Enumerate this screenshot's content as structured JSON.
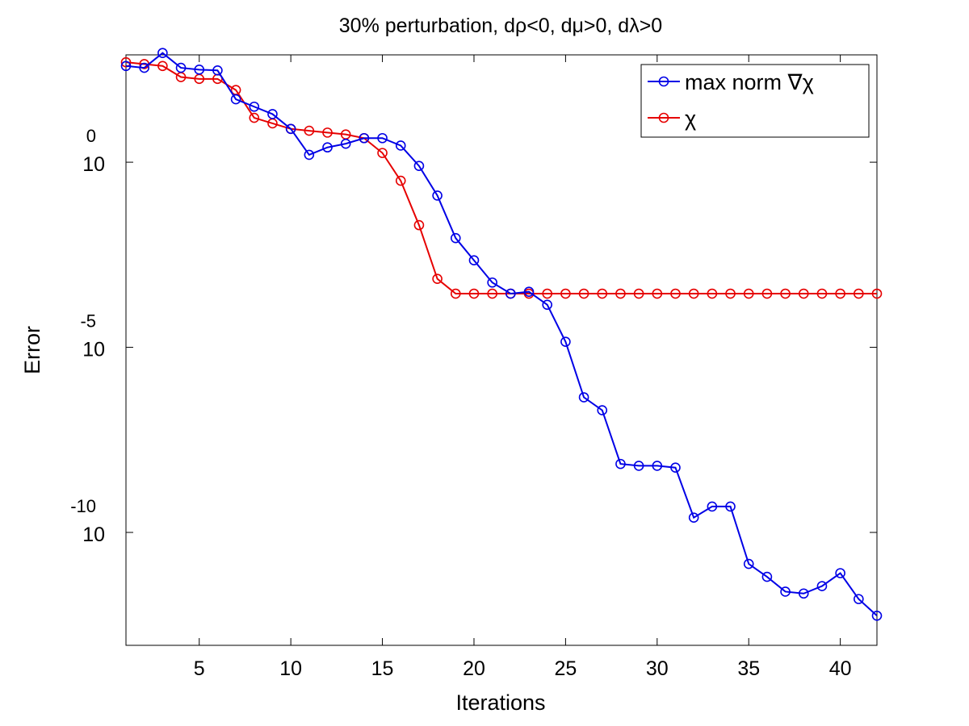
{
  "chart_data": {
    "type": "line",
    "title": "30% perturbation, dρ<0, dμ>0, dλ>0",
    "xlabel": "Iterations",
    "ylabel": "Error",
    "xlim": [
      1,
      42
    ],
    "ylim_log10": [
      -13.05,
      2.9
    ],
    "y_scale": "log",
    "grid": false,
    "legend_position": "top-right",
    "x_ticks": [
      {
        "value": 5,
        "label": "5"
      },
      {
        "value": 10,
        "label": "10"
      },
      {
        "value": 15,
        "label": "15"
      },
      {
        "value": 20,
        "label": "20"
      },
      {
        "value": 25,
        "label": "25"
      },
      {
        "value": 30,
        "label": "30"
      },
      {
        "value": 35,
        "label": "35"
      },
      {
        "value": 40,
        "label": "40"
      }
    ],
    "y_ticks": [
      {
        "exponent": 0,
        "base": "10",
        "exp_label": "0"
      },
      {
        "exponent": -5,
        "base": "10",
        "exp_label": "-5"
      },
      {
        "exponent": -10,
        "base": "10",
        "exp_label": "-10"
      }
    ],
    "x": [
      1,
      2,
      3,
      4,
      5,
      6,
      7,
      8,
      9,
      10,
      11,
      12,
      13,
      14,
      15,
      16,
      17,
      18,
      19,
      20,
      21,
      22,
      23,
      24,
      25,
      26,
      27,
      28,
      29,
      30,
      31,
      32,
      33,
      34,
      35,
      36,
      37,
      38,
      39,
      40,
      41,
      42
    ],
    "series": [
      {
        "name": "max norm ∇χ",
        "color": "#0000e6",
        "log10_values": [
          2.6,
          2.55,
          2.95,
          2.55,
          2.5,
          2.48,
          1.7,
          1.5,
          1.3,
          0.9,
          0.2,
          0.4,
          0.5,
          0.65,
          0.65,
          0.45,
          -0.1,
          -0.9,
          -2.05,
          -2.65,
          -3.25,
          -3.55,
          -3.5,
          -3.85,
          -4.85,
          -6.35,
          -6.7,
          -8.15,
          -8.2,
          -8.2,
          -8.25,
          -9.6,
          -9.3,
          -9.3,
          -10.85,
          -11.2,
          -11.6,
          -11.65,
          -11.45,
          -11.1,
          -11.8,
          -12.25
        ]
      },
      {
        "name": "χ",
        "color": "#e60000",
        "log10_values": [
          2.7,
          2.65,
          2.6,
          2.3,
          2.25,
          2.25,
          1.95,
          1.2,
          1.05,
          0.9,
          0.85,
          0.8,
          0.75,
          0.65,
          0.25,
          -0.5,
          -1.7,
          -3.15,
          -3.55,
          -3.55,
          -3.55,
          -3.55,
          -3.55,
          -3.55,
          -3.55,
          -3.55,
          -3.55,
          -3.55,
          -3.55,
          -3.55,
          -3.55,
          -3.55,
          -3.55,
          -3.55,
          -3.55,
          -3.55,
          -3.55,
          -3.55,
          -3.55,
          -3.55,
          -3.55,
          -3.55
        ]
      }
    ]
  }
}
